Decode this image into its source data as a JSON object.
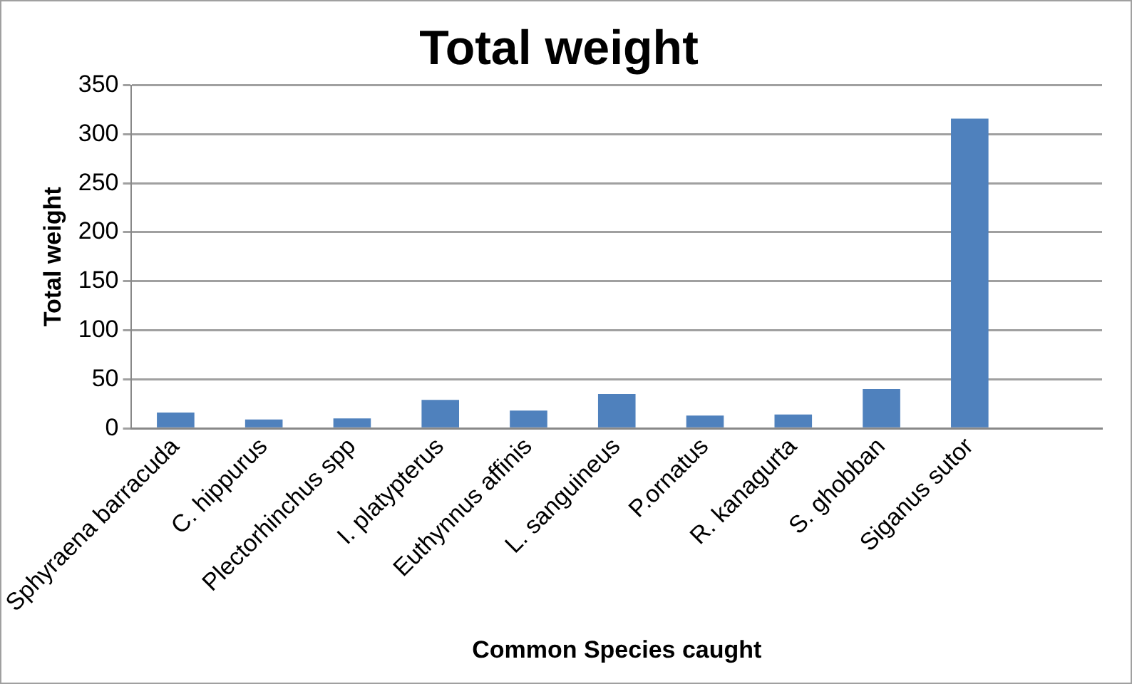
{
  "chart_data": {
    "type": "bar",
    "title": "Total weight",
    "xlabel": "Common Species caught",
    "ylabel": "Total weight",
    "categories": [
      "Sphyraena barracuda",
      "C. hippurus",
      "Plectorhinchus spp",
      "I. platypterus",
      "Euthynnus affinis",
      "L. sanguineus",
      "P.ornatus",
      "R. kanagurta",
      "S. ghobban",
      "Siganus sutor",
      null
    ],
    "values": [
      16,
      9,
      10,
      29,
      18,
      35,
      13,
      14,
      40,
      316,
      null
    ],
    "color": "#4f81bd",
    "ylim": [
      0,
      350
    ],
    "yticks": [
      0,
      50,
      100,
      150,
      200,
      250,
      300,
      350
    ],
    "grid": "y",
    "legend": false
  }
}
